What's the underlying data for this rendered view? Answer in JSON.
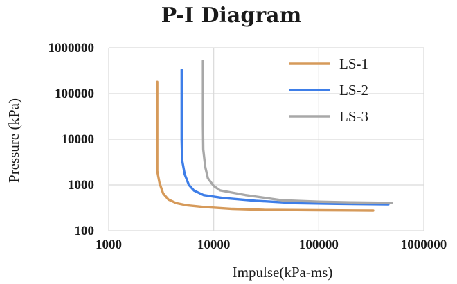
{
  "chart_data": {
    "type": "line",
    "title": "P-I Diagram",
    "xlabel": "Impulse(kPa-ms)",
    "ylabel": "Pressure (kPa)",
    "xscale": "log",
    "yscale": "log",
    "xlim": [
      1000,
      1000000
    ],
    "ylim": [
      100,
      1000000
    ],
    "x_ticks": [
      1000,
      10000,
      100000,
      1000000
    ],
    "x_tick_labels": [
      "1000",
      "10000",
      "100000",
      "1000000"
    ],
    "y_ticks": [
      100,
      1000,
      10000,
      100000,
      1000000
    ],
    "y_tick_labels": [
      "100",
      "1000",
      "10000",
      "100000",
      "1000000"
    ],
    "grid": "both",
    "legend": "top-right",
    "series": [
      {
        "name": "LS-1",
        "color": "#D69A5A",
        "points": [
          [
            2900,
            180000
          ],
          [
            2900,
            50000
          ],
          [
            2900,
            10000
          ],
          [
            2900,
            2000
          ],
          [
            3050,
            1100
          ],
          [
            3300,
            650
          ],
          [
            3700,
            480
          ],
          [
            4400,
            400
          ],
          [
            5500,
            360
          ],
          [
            8000,
            330
          ],
          [
            15000,
            300
          ],
          [
            30000,
            285
          ],
          [
            100000,
            280
          ],
          [
            330000,
            275
          ]
        ]
      },
      {
        "name": "LS-2",
        "color": "#3E7EE8",
        "points": [
          [
            4950,
            330000
          ],
          [
            4950,
            100000
          ],
          [
            4950,
            10000
          ],
          [
            5000,
            3500
          ],
          [
            5300,
            1700
          ],
          [
            5800,
            1000
          ],
          [
            6500,
            750
          ],
          [
            8000,
            600
          ],
          [
            12000,
            520
          ],
          [
            25000,
            450
          ],
          [
            60000,
            400
          ],
          [
            150000,
            385
          ],
          [
            460000,
            375
          ]
        ]
      },
      {
        "name": "LS-3",
        "color": "#A8A8A8",
        "points": [
          [
            7900,
            520000
          ],
          [
            7900,
            100000
          ],
          [
            7900,
            20000
          ],
          [
            7950,
            6000
          ],
          [
            8300,
            2500
          ],
          [
            8800,
            1400
          ],
          [
            10000,
            950
          ],
          [
            11500,
            760
          ],
          [
            20000,
            600
          ],
          [
            45000,
            460
          ],
          [
            100000,
            430
          ],
          [
            200000,
            415
          ],
          [
            500000,
            405
          ]
        ]
      }
    ]
  }
}
